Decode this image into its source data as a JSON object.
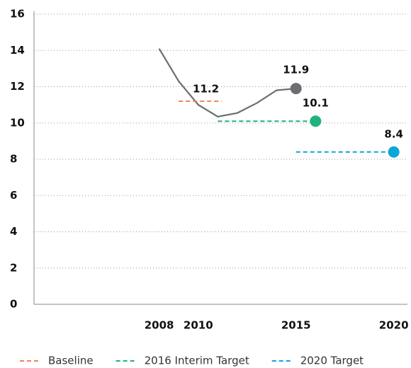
{
  "chart_data": {
    "type": "line",
    "xlim": [
      2001.6,
      2020.7
    ],
    "xticks": [
      2008,
      2010,
      2015,
      2020
    ],
    "ylim": [
      0,
      16
    ],
    "yticks": [
      0,
      2,
      4,
      6,
      8,
      10,
      12,
      14,
      16
    ],
    "grid": true,
    "legend": "bottom",
    "series": [
      {
        "color": "#6d6e71",
        "x": [
          2008,
          2009,
          2010,
          2011,
          2012,
          2013,
          2014,
          2015
        ],
        "values": [
          14.1,
          12.3,
          11.0,
          10.35,
          10.55,
          11.1,
          11.8,
          11.9
        ],
        "end_marker": true
      }
    ],
    "targets": [
      {
        "name": "Baseline",
        "color": "#f0845a",
        "x": [
          2009,
          2011.2
        ],
        "value": 11.2,
        "marker": false
      },
      {
        "name": "2016 Interim Target",
        "color": "#1fb37e",
        "x": [
          2011,
          2016
        ],
        "value": 10.1,
        "marker": true
      },
      {
        "name": "2020 Target",
        "color": "#0ea5d9",
        "x": [
          2015,
          2020
        ],
        "value": 8.4,
        "marker": true
      }
    ]
  }
}
